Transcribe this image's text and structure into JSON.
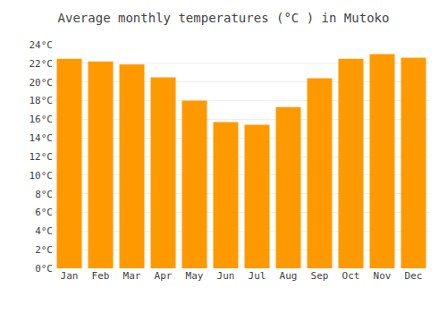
{
  "chart_data": {
    "type": "bar",
    "title": "Average monthly temperatures (°C ) in Mutoko",
    "categories": [
      "Jan",
      "Feb",
      "Mar",
      "Apr",
      "May",
      "Jun",
      "Jul",
      "Aug",
      "Sep",
      "Oct",
      "Nov",
      "Dec"
    ],
    "values": [
      22.5,
      22.2,
      21.9,
      20.5,
      18.0,
      15.7,
      15.4,
      17.3,
      20.4,
      22.5,
      23.0,
      22.6
    ],
    "color": "#FF9900",
    "ylim": [
      0,
      24
    ],
    "yticks": [
      {
        "value": 0,
        "label": "0°C"
      },
      {
        "value": 2,
        "label": "2°C"
      },
      {
        "value": 4,
        "label": "4°C"
      },
      {
        "value": 6,
        "label": "6°C"
      },
      {
        "value": 8,
        "label": "8°C"
      },
      {
        "value": 10,
        "label": "10°C"
      },
      {
        "value": 12,
        "label": "12°C"
      },
      {
        "value": 14,
        "label": "14°C"
      },
      {
        "value": 16,
        "label": "16°C"
      },
      {
        "value": 18,
        "label": "18°C"
      },
      {
        "value": 20,
        "label": "20°C"
      },
      {
        "value": 22,
        "label": "22°C"
      },
      {
        "value": 24,
        "label": "24°C"
      }
    ],
    "grid": true
  }
}
